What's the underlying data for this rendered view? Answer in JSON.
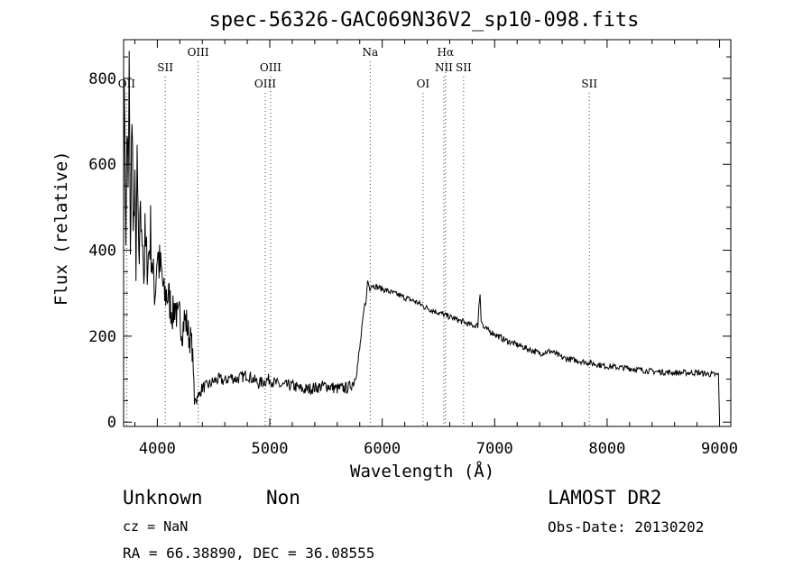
{
  "chart_data": {
    "type": "line",
    "title": "spec-56326-GAC069N36V2_sp10-098.fits",
    "xlabel": "Wavelength (Å)",
    "ylabel": "Flux (relative)",
    "xlim": [
      3700,
      9100
    ],
    "ylim": [
      -10,
      890
    ],
    "xticks": [
      "4000",
      "5000",
      "6000",
      "7000",
      "8000",
      "9000"
    ],
    "yticks": [
      "0",
      "200",
      "400",
      "600",
      "800"
    ],
    "grid": false,
    "series": [
      {
        "x": [
          3700,
          3710,
          3720,
          3730,
          3740,
          3750,
          3760,
          3770,
          3780,
          3790,
          3800,
          3810,
          3820,
          3830,
          3840,
          3850,
          3860,
          3870,
          3880,
          3890,
          3900,
          3920,
          3940,
          3960,
          3980,
          4000,
          4020,
          4040,
          4060,
          4080,
          4100,
          4120,
          4140,
          4160,
          4180,
          4200,
          4220,
          4240,
          4260,
          4280,
          4300,
          4310,
          4320,
          4330,
          4340,
          4350,
          4360,
          4370,
          4380,
          4400,
          4450,
          4500,
          4550,
          4600,
          4650,
          4700,
          4750,
          4800,
          4850,
          4900,
          4950,
          5000,
          5050,
          5100,
          5200,
          5300,
          5400,
          5500,
          5600,
          5700,
          5750,
          5780,
          5800,
          5820,
          5840,
          5860,
          5870,
          5880,
          5890,
          5900,
          5950,
          6000,
          6050,
          6100,
          6150,
          6200,
          6300,
          6400,
          6500,
          6600,
          6700,
          6800,
          6850,
          6860,
          6870,
          6880,
          6900,
          7000,
          7100,
          7200,
          7300,
          7400,
          7500,
          7600,
          7700,
          7800,
          7900,
          8000,
          8200,
          8400,
          8600,
          8800,
          8900,
          8990,
          9000
        ],
        "y": [
          620,
          770,
          380,
          710,
          500,
          810,
          350,
          690,
          600,
          460,
          510,
          380,
          560,
          460,
          320,
          540,
          400,
          470,
          330,
          420,
          380,
          380,
          440,
          340,
          300,
          400,
          360,
          340,
          290,
          300,
          290,
          270,
          250,
          280,
          230,
          250,
          210,
          240,
          230,
          200,
          190,
          170,
          130,
          40,
          60,
          50,
          70,
          55,
          70,
          80,
          85,
          95,
          100,
          95,
          105,
          100,
          105,
          110,
          100,
          90,
          95,
          100,
          90,
          85,
          85,
          75,
          80,
          85,
          78,
          80,
          95,
          130,
          170,
          220,
          265,
          290,
          330,
          320,
          310,
          320,
          315,
          310,
          305,
          300,
          295,
          290,
          280,
          265,
          255,
          245,
          235,
          225,
          225,
          270,
          300,
          240,
          220,
          205,
          190,
          180,
          170,
          160,
          165,
          150,
          145,
          140,
          135,
          130,
          125,
          118,
          115,
          115,
          112,
          110,
          5
        ]
      }
    ],
    "lines": [
      {
        "label": "OII",
        "x": 3727,
        "row": 3
      },
      {
        "label": "SII",
        "x": 4070,
        "row": 2
      },
      {
        "label": "OIII",
        "x": 4363,
        "row": 1
      },
      {
        "label": "OIII",
        "x": 4959,
        "row": 3
      },
      {
        "label": "OIII",
        "x": 5007,
        "row": 2
      },
      {
        "label": "Na",
        "x": 5893,
        "row": 1
      },
      {
        "label": "OI",
        "x": 6363,
        "row": 3
      },
      {
        "label": "Hα",
        "x": 6563,
        "row": 1
      },
      {
        "label": "NII",
        "x": 6548,
        "row": 2
      },
      {
        "label": "SII",
        "x": 6724,
        "row": 2
      },
      {
        "label": "SII",
        "x": 7842,
        "row": 3
      }
    ]
  },
  "footer": {
    "class": "Unknown",
    "subclass": "Non",
    "cz": "cz = NaN",
    "radec": "RA =  66.38890, DEC =  36.08555",
    "survey": "LAMOST DR2",
    "obsdate": "Obs-Date: 20130202"
  }
}
